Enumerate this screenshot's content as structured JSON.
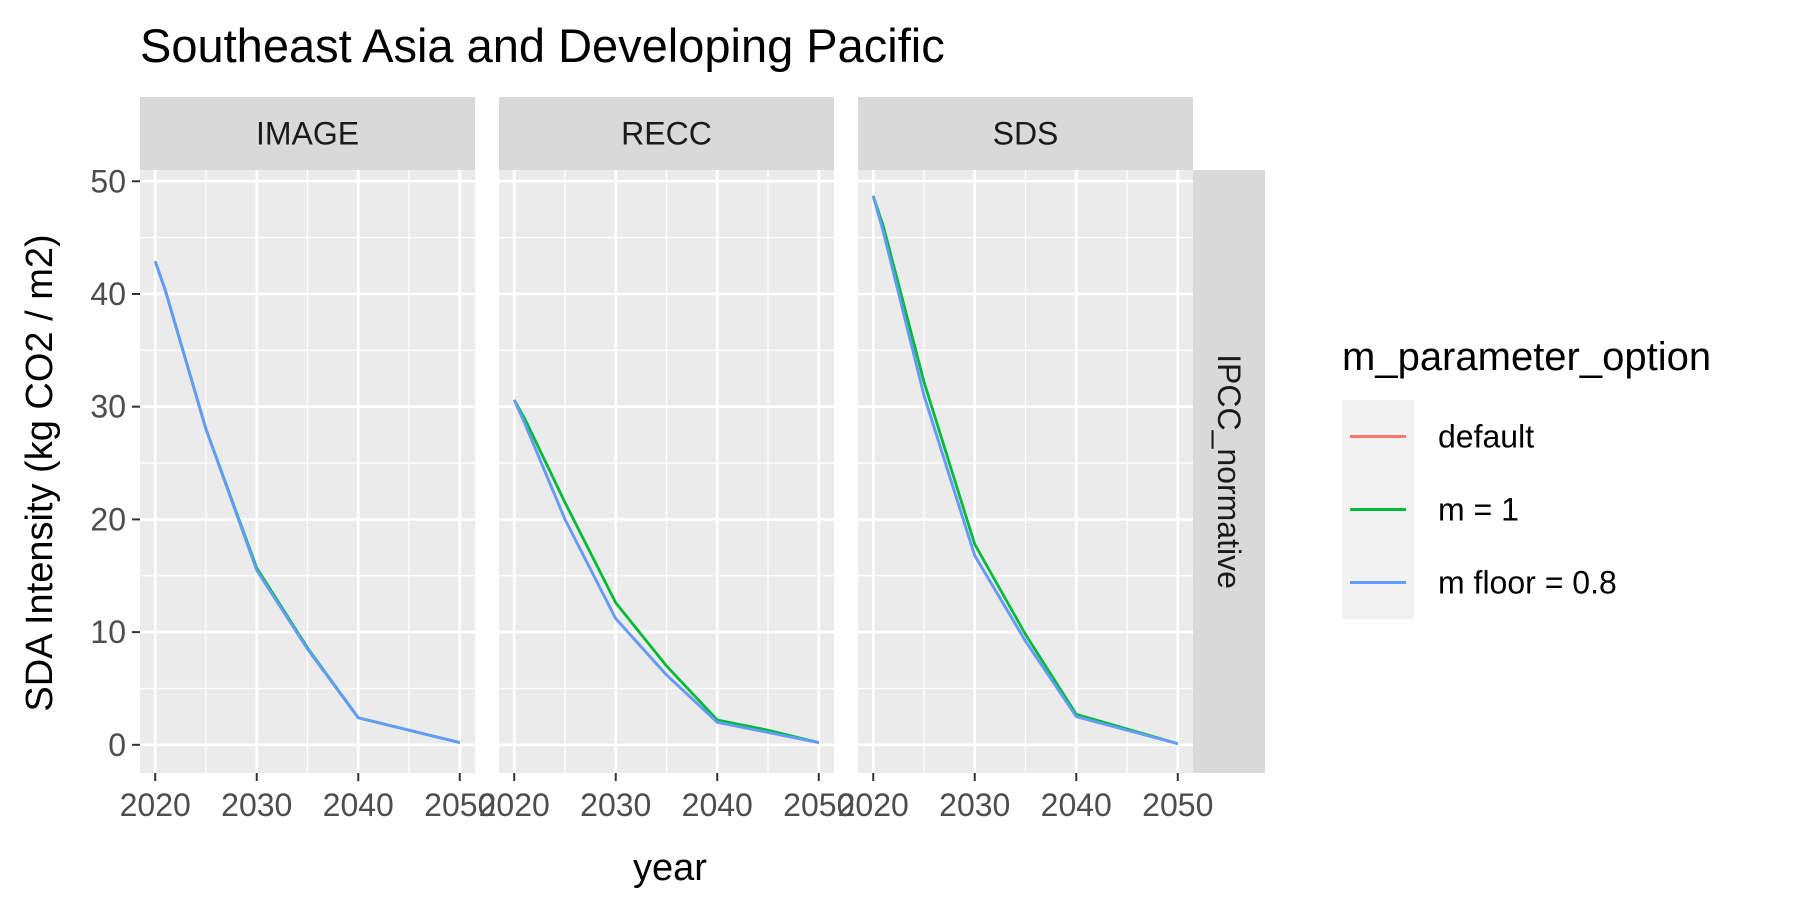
{
  "chart_data": {
    "type": "line",
    "title": "Southeast Asia and Developing Pacific",
    "xlabel": "year",
    "ylabel": "SDA Intensity (kg CO2 / m2)",
    "xlim": [
      2018.5,
      2051.5
    ],
    "ylim": [
      -2.5,
      51
    ],
    "x_ticks": [
      2020,
      2030,
      2040,
      2050
    ],
    "y_ticks": [
      0,
      10,
      20,
      30,
      40,
      50
    ],
    "grid": true,
    "row_facet": "IPCC_normative",
    "legend": {
      "title": "m_parameter_option",
      "position": "right",
      "entries": [
        {
          "label": "default",
          "color": "#F8766D"
        },
        {
          "label": "m = 1",
          "color": "#00BA38"
        },
        {
          "label": "m floor = 0.8",
          "color": "#619CFF"
        }
      ]
    },
    "facets": [
      {
        "label": "IMAGE",
        "series": [
          {
            "color": "#F8766D",
            "x": [
              2020,
              2021,
              2025,
              2030,
              2035,
              2040,
              2045,
              2050
            ],
            "y": [
              42.9,
              40.3,
              28.0,
              15.5,
              8.5,
              2.4,
              1.3,
              0.2
            ]
          },
          {
            "color": "#00BA38",
            "x": [
              2020,
              2021,
              2025,
              2030,
              2035,
              2040,
              2045,
              2050
            ],
            "y": [
              42.9,
              40.3,
              28.0,
              15.7,
              8.6,
              2.4,
              1.3,
              0.2
            ]
          },
          {
            "color": "#619CFF",
            "x": [
              2020,
              2021,
              2025,
              2030,
              2035,
              2040,
              2045,
              2050
            ],
            "y": [
              42.9,
              40.3,
              28.0,
              15.5,
              8.5,
              2.4,
              1.3,
              0.2
            ]
          }
        ]
      },
      {
        "label": "RECC",
        "series": [
          {
            "color": "#F8766D",
            "x": [
              2020,
              2021,
              2025,
              2030,
              2035,
              2040,
              2045,
              2050
            ],
            "y": [
              30.6,
              28.6,
              20.0,
              11.2,
              6.2,
              2.0,
              1.1,
              0.2
            ]
          },
          {
            "color": "#00BA38",
            "x": [
              2020,
              2021,
              2025,
              2030,
              2035,
              2040,
              2045,
              2050
            ],
            "y": [
              30.6,
              29.0,
              21.5,
              12.6,
              7.0,
              2.2,
              1.3,
              0.2
            ]
          },
          {
            "color": "#619CFF",
            "x": [
              2020,
              2021,
              2025,
              2030,
              2035,
              2040,
              2045,
              2050
            ],
            "y": [
              30.6,
              28.6,
              20.0,
              11.2,
              6.2,
              2.0,
              1.1,
              0.2
            ]
          }
        ]
      },
      {
        "label": "SDS",
        "series": [
          {
            "color": "#F8766D",
            "x": [
              2020,
              2021,
              2025,
              2030,
              2035,
              2040,
              2045,
              2050
            ],
            "y": [
              48.7,
              45.5,
              31.0,
              16.8,
              9.2,
              2.5,
              1.3,
              0.1
            ]
          },
          {
            "color": "#00BA38",
            "x": [
              2020,
              2021,
              2025,
              2030,
              2035,
              2040,
              2045,
              2050
            ],
            "y": [
              48.7,
              46.0,
              32.2,
              17.8,
              9.8,
              2.7,
              1.4,
              0.1
            ]
          },
          {
            "color": "#619CFF",
            "x": [
              2020,
              2021,
              2025,
              2030,
              2035,
              2040,
              2045,
              2050
            ],
            "y": [
              48.7,
              45.5,
              31.0,
              16.8,
              9.2,
              2.5,
              1.3,
              0.1
            ]
          }
        ]
      }
    ]
  }
}
